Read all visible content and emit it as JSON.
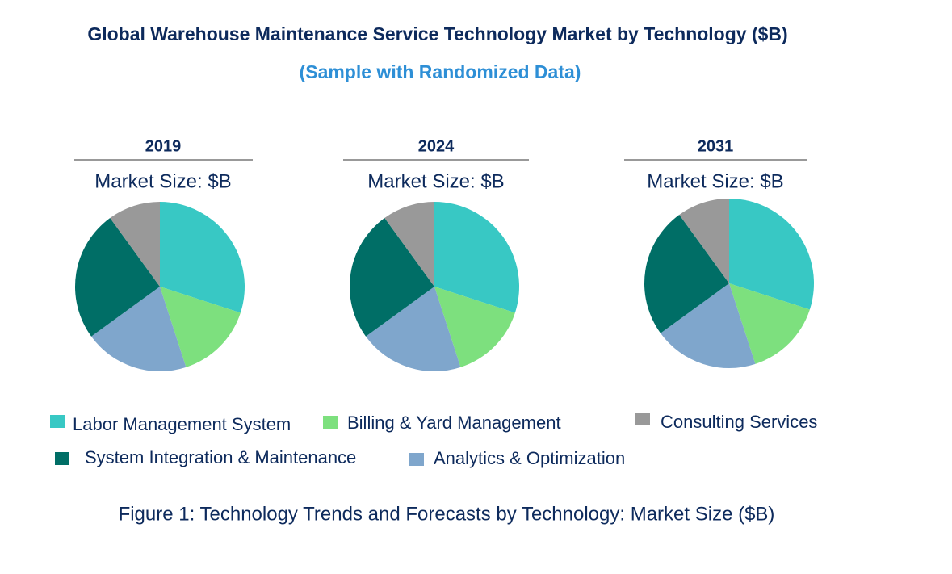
{
  "title": "Global Warehouse Maintenance Service Technology Market by Technology ($B)",
  "subtitle": "(Sample with Randomized Data)",
  "caption": "Figure 1: Technology Trends and Forecasts by Technology: Market Size ($B)",
  "chart_data": [
    {
      "type": "pie",
      "title": "2019",
      "subtitle": "Market Size: $B",
      "categories": [
        "Labor Management System",
        "Billing & Yard Management",
        "Analytics & Optimization",
        "System Integration & Maintenance",
        "Consulting Services"
      ],
      "colors": [
        "#38c8c4",
        "#7de07e",
        "#7fa6cc",
        "#006e66",
        "#999999"
      ],
      "values": [
        30,
        15,
        20,
        25,
        10
      ]
    },
    {
      "type": "pie",
      "title": "2024",
      "subtitle": "Market Size: $B",
      "categories": [
        "Labor Management System",
        "Billing & Yard Management",
        "Analytics & Optimization",
        "System Integration & Maintenance",
        "Consulting Services"
      ],
      "colors": [
        "#38c8c4",
        "#7de07e",
        "#7fa6cc",
        "#006e66",
        "#999999"
      ],
      "values": [
        30,
        15,
        20,
        25,
        10
      ]
    },
    {
      "type": "pie",
      "title": "2031",
      "subtitle": "Market Size: $B",
      "categories": [
        "Labor Management System",
        "Billing & Yard Management",
        "Analytics & Optimization",
        "System Integration & Maintenance",
        "Consulting Services"
      ],
      "colors": [
        "#38c8c4",
        "#7de07e",
        "#7fa6cc",
        "#006e66",
        "#999999"
      ],
      "values": [
        30,
        15,
        20,
        25,
        10
      ]
    }
  ]
}
